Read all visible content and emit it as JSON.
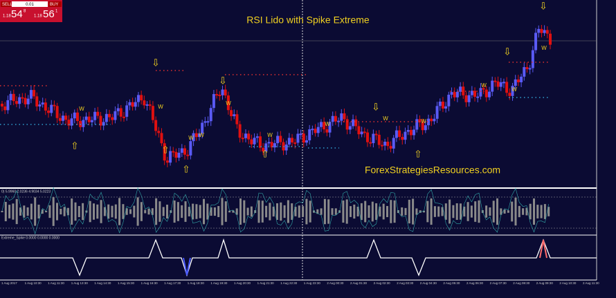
{
  "panel": {
    "sell": "SELL",
    "buy": "BUY",
    "lot": "0.01",
    "bid_prefix": "1.18",
    "bid_big": "54",
    "bid_small": "8",
    "ask_prefix": "1.18",
    "ask_big": "56",
    "ask_small": "1"
  },
  "title": "RSI Lido with Spike Extreme",
  "watermark": "ForexStrategiesResources.com",
  "rsi_label": "0) 5.9960 2.0236 4.9034 5.0223",
  "spike_label": "Extreme_Spike 0.0000 0.0000 0.0000",
  "time_labels": [
    "1 Aug 2017",
    "1 Aug 10:30",
    "1 Aug 11:30",
    "1 Aug 13:30",
    "1 Aug 14:30",
    "1 Aug 15:30",
    "1 Aug 16:30",
    "1 Aug 17:30",
    "1 Aug 18:30",
    "1 Aug 19:30",
    "1 Aug 20:30",
    "1 Aug 21:30",
    "1 Aug 22:30",
    "1 Aug 23:30",
    "2 Aug 00:30",
    "2 Aug 01:30",
    "2 Aug 02:30",
    "2 Aug 03:30",
    "2 Aug 04:30",
    "2 Aug 05:30",
    "2 Aug 06:30",
    "2 Aug 07:30",
    "2 Aug 08:30",
    "2 Aug 09:30",
    "2 Aug 10:30",
    "2 Aug 11:30"
  ]
}
